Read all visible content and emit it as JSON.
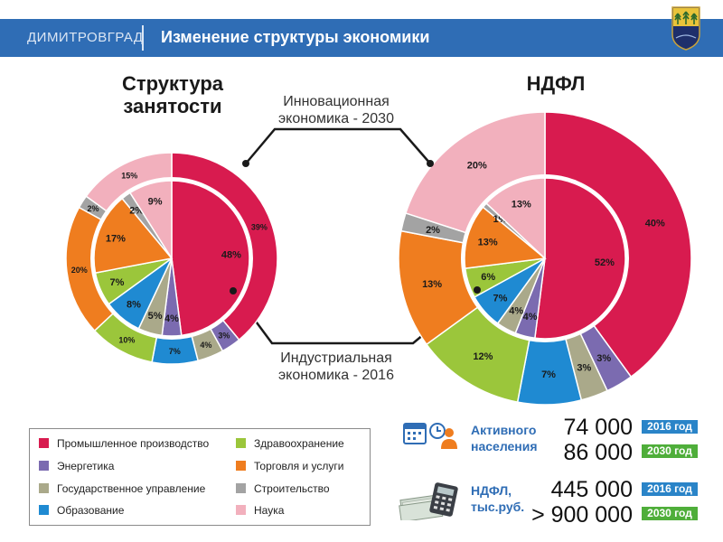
{
  "header": {
    "city": "ДИМИТРОВГРАД",
    "title": "Изменение структуры экономики"
  },
  "colors": {
    "industry": "#d81b4f",
    "energy": "#7b6bb0",
    "government": "#aaa98a",
    "education": "#1f8ad2",
    "health": "#9bc63b",
    "trade": "#ef7d1f",
    "construction": "#a3a3a3",
    "science": "#f2b0bd",
    "banner": "#2f6db5"
  },
  "eras": {
    "innovation": "Инновационная экономика - 2030",
    "industrial": "Индустриальная экономика - 2016"
  },
  "chart_data": [
    {
      "type": "pie",
      "title": "Структура занятости",
      "rings": [
        {
          "name": "2016",
          "ring": "inner",
          "slices": [
            {
              "category": "Промышленное производство",
              "key": "industry",
              "value": 48,
              "label": "48%"
            },
            {
              "category": "Энергетика",
              "key": "energy",
              "value": 4,
              "label": "4%"
            },
            {
              "category": "Государственное управление",
              "key": "government",
              "value": 5,
              "label": "5%"
            },
            {
              "category": "Образование",
              "key": "education",
              "value": 8,
              "label": "8%"
            },
            {
              "category": "Здравоохранение",
              "key": "health",
              "value": 7,
              "label": "7%"
            },
            {
              "category": "Торговля и услуги",
              "key": "trade",
              "value": 17,
              "label": "17%"
            },
            {
              "category": "Строительство",
              "key": "construction",
              "value": 2,
              "label": "2%"
            },
            {
              "category": "Наука",
              "key": "science",
              "value": 9,
              "label": "9%"
            }
          ]
        },
        {
          "name": "2030",
          "ring": "outer",
          "slices": [
            {
              "category": "Промышленное производство",
              "key": "industry",
              "value": 39,
              "label": "39%"
            },
            {
              "category": "Энергетика",
              "key": "energy",
              "value": 3,
              "label": "3%"
            },
            {
              "category": "Государственное управление",
              "key": "government",
              "value": 4,
              "label": "4%"
            },
            {
              "category": "Образование",
              "key": "education",
              "value": 7,
              "label": "7%"
            },
            {
              "category": "Здравоохранение",
              "key": "health",
              "value": 10,
              "label": "10%"
            },
            {
              "category": "Торговля и услуги",
              "key": "trade",
              "value": 20,
              "label": "20%"
            },
            {
              "category": "Строительство",
              "key": "construction",
              "value": 2,
              "label": "2%"
            },
            {
              "category": "Наука",
              "key": "science",
              "value": 15,
              "label": "15%"
            }
          ]
        }
      ]
    },
    {
      "type": "pie",
      "title": "НДФЛ",
      "rings": [
        {
          "name": "2016",
          "ring": "inner",
          "slices": [
            {
              "category": "Промышленное производство",
              "key": "industry",
              "value": 52,
              "label": "52%"
            },
            {
              "category": "Энергетика",
              "key": "energy",
              "value": 4,
              "label": "4%"
            },
            {
              "category": "Государственное управление",
              "key": "government",
              "value": 4,
              "label": "4%"
            },
            {
              "category": "Образование",
              "key": "education",
              "value": 7,
              "label": "7%"
            },
            {
              "category": "Здравоохранение",
              "key": "health",
              "value": 6,
              "label": "6%"
            },
            {
              "category": "Торговля и услуги",
              "key": "trade",
              "value": 13,
              "label": "13%"
            },
            {
              "category": "Строительство",
              "key": "construction",
              "value": 1,
              "label": "1%"
            },
            {
              "category": "Наука",
              "key": "science",
              "value": 13,
              "label": "13%"
            }
          ]
        },
        {
          "name": "2030",
          "ring": "outer",
          "slices": [
            {
              "category": "Промышленное производство",
              "key": "industry",
              "value": 40,
              "label": "40%"
            },
            {
              "category": "Энергетика",
              "key": "energy",
              "value": 3,
              "label": "3%"
            },
            {
              "category": "Государственное управление",
              "key": "government",
              "value": 3,
              "label": "3%"
            },
            {
              "category": "Образование",
              "key": "education",
              "value": 7,
              "label": "7%"
            },
            {
              "category": "Здравоохранение",
              "key": "health",
              "value": 12,
              "label": "12%"
            },
            {
              "category": "Торговля и услуги",
              "key": "trade",
              "value": 13,
              "label": "13%"
            },
            {
              "category": "Строительство",
              "key": "construction",
              "value": 2,
              "label": "2%"
            },
            {
              "category": "Наука",
              "key": "science",
              "value": 20,
              "label": "20%"
            }
          ]
        }
      ]
    }
  ],
  "legend": {
    "items": [
      {
        "key": "industry",
        "label": "Промышленное производство"
      },
      {
        "key": "energy",
        "label": "Энергетика"
      },
      {
        "key": "government",
        "label": "Государственное управление"
      },
      {
        "key": "education",
        "label": "Образование"
      },
      {
        "key": "health",
        "label": "Здравоохранение"
      },
      {
        "key": "trade",
        "label": "Торговля и услуги"
      },
      {
        "key": "construction",
        "label": "Строительство"
      },
      {
        "key": "science",
        "label": "Наука"
      }
    ]
  },
  "stats": {
    "population": {
      "label": "Активного населения",
      "icon": "calendar-clock-person-icon",
      "value_2016": "74 000",
      "value_2030": "86 000",
      "badge_2016": "2016 год",
      "badge_2030": "2030 год"
    },
    "ndfl": {
      "label": "НДФЛ, тыс.руб.",
      "icon": "calculator-money-icon",
      "value_2016": "445 000",
      "value_2030": "> 900 000",
      "badge_2016": "2016 год",
      "badge_2030": "2030 год"
    }
  }
}
